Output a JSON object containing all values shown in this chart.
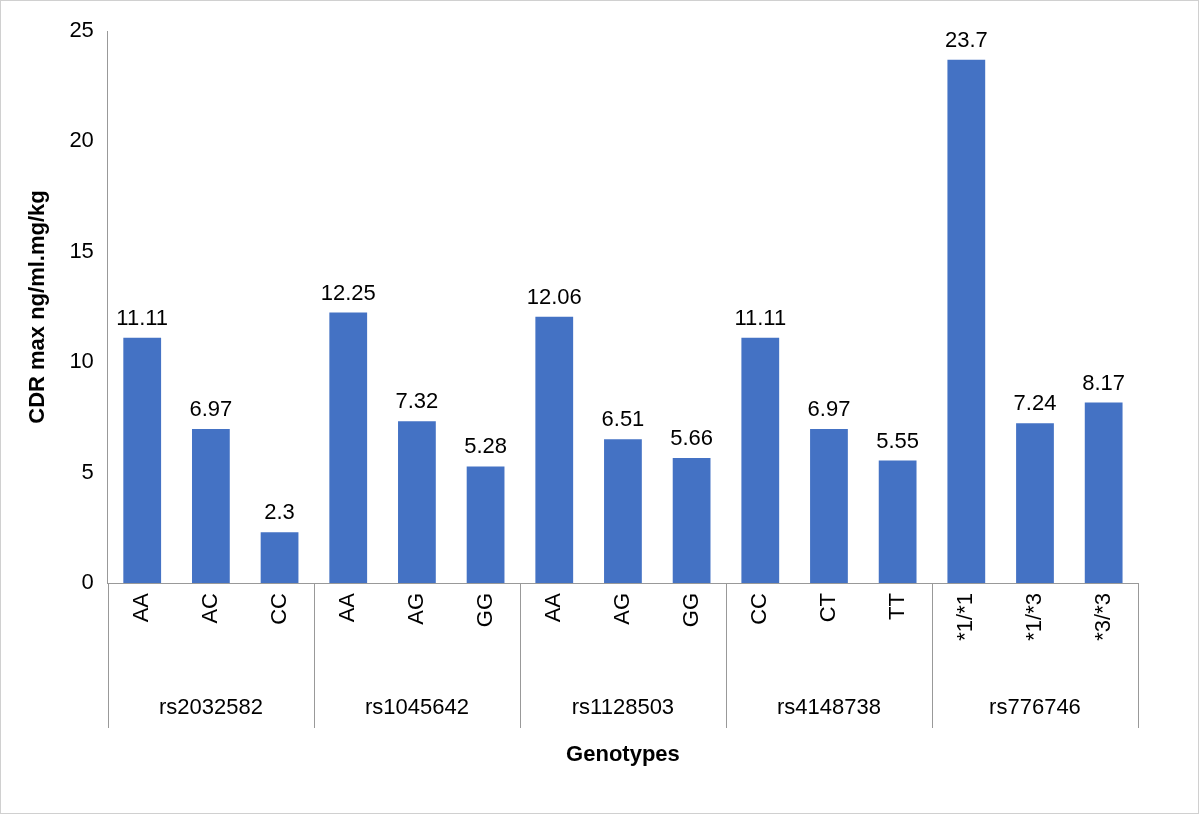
{
  "chart_data": {
    "type": "bar",
    "ylabel": "CDR max ng/ml.mg/kg",
    "xlabel": "Genotypes",
    "categories": [
      "AA",
      "AC",
      "CC",
      "AA",
      "AG",
      "GG",
      "AA",
      "AG",
      "GG",
      "CC",
      "CT",
      "TT",
      "*1/*1",
      "*1/*3",
      "*3/*3"
    ],
    "values": [
      11.11,
      6.97,
      2.3,
      12.25,
      7.32,
      5.28,
      12.06,
      6.51,
      5.66,
      11.11,
      6.97,
      5.55,
      23.7,
      7.24,
      8.17
    ],
    "color": "#4472c4",
    "ylim": [
      0,
      25
    ],
    "yticks": [
      0,
      5,
      10,
      15,
      20,
      25
    ],
    "grid": false,
    "legend": false,
    "data_labels": true,
    "annotations": [
      "rs2032582",
      "rs1045642",
      "rs1128503",
      "rs4148738",
      "rs776746"
    ]
  }
}
